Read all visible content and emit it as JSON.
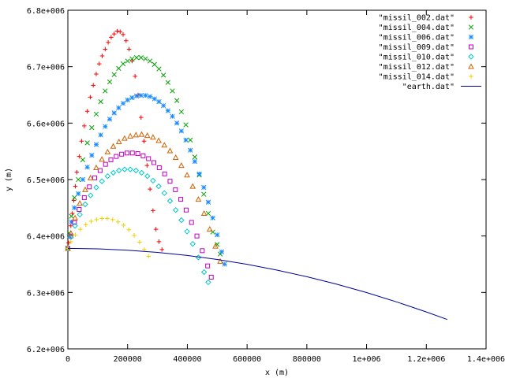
{
  "chart_data": {
    "type": "scatter",
    "xlabel": "x (m)",
    "ylabel": "y (m)",
    "xlim": [
      0,
      1400000
    ],
    "ylim": [
      6200000,
      6800000
    ],
    "x_ticks": [
      {
        "value": 0,
        "label": "0"
      },
      {
        "value": 200000,
        "label": "200000"
      },
      {
        "value": 400000,
        "label": "400000"
      },
      {
        "value": 600000,
        "label": "600000"
      },
      {
        "value": 800000,
        "label": "800000"
      },
      {
        "value": 1000000,
        "label": "1e+006"
      },
      {
        "value": 1200000,
        "label": "1.2e+006"
      },
      {
        "value": 1400000,
        "label": "1.4e+006"
      }
    ],
    "y_ticks": [
      {
        "value": 6200000,
        "label": "6.2e+006"
      },
      {
        "value": 6300000,
        "label": "6.3e+006"
      },
      {
        "value": 6400000,
        "label": "6.4e+006"
      },
      {
        "value": 6500000,
        "label": "6.5e+006"
      },
      {
        "value": 6600000,
        "label": "6.6e+006"
      },
      {
        "value": 6700000,
        "label": "6.7e+006"
      },
      {
        "value": 6800000,
        "label": "6.8e+006"
      }
    ],
    "grid": false,
    "legend_position": "top-right",
    "series": [
      {
        "name": "\"missil_002.dat\"",
        "marker": "plus",
        "color": "#ff0000",
        "points": [
          [
            0,
            6378000
          ],
          [
            2000,
            6388000
          ],
          [
            5000,
            6400000
          ],
          [
            10000,
            6418000
          ],
          [
            15000,
            6440000
          ],
          [
            20000,
            6463000
          ],
          [
            25000,
            6488000
          ],
          [
            30000,
            6513000
          ],
          [
            38000,
            6541000
          ],
          [
            46000,
            6568000
          ],
          [
            55000,
            6595000
          ],
          [
            65000,
            6621000
          ],
          [
            75000,
            6646000
          ],
          [
            85000,
            6667000
          ],
          [
            95000,
            6687000
          ],
          [
            105000,
            6705000
          ],
          [
            115000,
            6719000
          ],
          [
            125000,
            6731000
          ],
          [
            135000,
            6743000
          ],
          [
            145000,
            6752000
          ],
          [
            155000,
            6758000
          ],
          [
            165000,
            6763000
          ],
          [
            175000,
            6762000
          ],
          [
            185000,
            6757000
          ],
          [
            195000,
            6746000
          ],
          [
            205000,
            6731000
          ],
          [
            215000,
            6710000
          ],
          [
            225000,
            6683000
          ],
          [
            235000,
            6650000
          ],
          [
            245000,
            6610000
          ],
          [
            255000,
            6568000
          ],
          [
            265000,
            6525000
          ],
          [
            275000,
            6483000
          ],
          [
            285000,
            6445000
          ],
          [
            295000,
            6412000
          ],
          [
            305000,
            6390000
          ],
          [
            315000,
            6376000
          ]
        ]
      },
      {
        "name": "\"missil_004.dat\"",
        "marker": "cross",
        "color": "#00a000",
        "points": [
          [
            0,
            6378000
          ],
          [
            5000,
            6405000
          ],
          [
            12000,
            6435000
          ],
          [
            22000,
            6468000
          ],
          [
            35000,
            6500000
          ],
          [
            50000,
            6535000
          ],
          [
            65000,
            6565000
          ],
          [
            80000,
            6592000
          ],
          [
            95000,
            6616000
          ],
          [
            110000,
            6638000
          ],
          [
            125000,
            6657000
          ],
          [
            140000,
            6673000
          ],
          [
            155000,
            6686000
          ],
          [
            170000,
            6697000
          ],
          [
            185000,
            6705000
          ],
          [
            200000,
            6710000
          ],
          [
            215000,
            6714000
          ],
          [
            230000,
            6716000
          ],
          [
            245000,
            6716000
          ],
          [
            260000,
            6714000
          ],
          [
            275000,
            6710000
          ],
          [
            290000,
            6704000
          ],
          [
            305000,
            6696000
          ],
          [
            320000,
            6685000
          ],
          [
            335000,
            6672000
          ],
          [
            350000,
            6657000
          ],
          [
            365000,
            6640000
          ],
          [
            380000,
            6620000
          ],
          [
            395000,
            6597000
          ],
          [
            410000,
            6570000
          ],
          [
            425000,
            6540000
          ],
          [
            440000,
            6508000
          ],
          [
            455000,
            6474000
          ],
          [
            470000,
            6440000
          ],
          [
            485000,
            6407000
          ],
          [
            500000,
            6385000
          ],
          [
            510000,
            6368000
          ]
        ]
      },
      {
        "name": "\"missil_006.dat\"",
        "marker": "star",
        "color": "#1a8cff",
        "points": [
          [
            0,
            6378000
          ],
          [
            5000,
            6400000
          ],
          [
            12000,
            6425000
          ],
          [
            22000,
            6450000
          ],
          [
            35000,
            6475000
          ],
          [
            50000,
            6500000
          ],
          [
            65000,
            6522000
          ],
          [
            80000,
            6543000
          ],
          [
            95000,
            6562000
          ],
          [
            110000,
            6579000
          ],
          [
            125000,
            6594000
          ],
          [
            140000,
            6607000
          ],
          [
            155000,
            6618000
          ],
          [
            170000,
            6627000
          ],
          [
            185000,
            6635000
          ],
          [
            200000,
            6641000
          ],
          [
            215000,
            6645000
          ],
          [
            230000,
            6648000
          ],
          [
            245000,
            6649000
          ],
          [
            260000,
            6649000
          ],
          [
            275000,
            6647000
          ],
          [
            290000,
            6643000
          ],
          [
            305000,
            6638000
          ],
          [
            320000,
            6631000
          ],
          [
            335000,
            6622000
          ],
          [
            350000,
            6612000
          ],
          [
            365000,
            6600000
          ],
          [
            380000,
            6586000
          ],
          [
            395000,
            6570000
          ],
          [
            410000,
            6552000
          ],
          [
            425000,
            6532000
          ],
          [
            440000,
            6510000
          ],
          [
            455000,
            6486000
          ],
          [
            470000,
            6460000
          ],
          [
            485000,
            6432000
          ],
          [
            500000,
            6402000
          ],
          [
            515000,
            6372000
          ],
          [
            525000,
            6350000
          ]
        ]
      },
      {
        "name": "\"missil_009.dat\"",
        "marker": "square",
        "color": "#c000c0",
        "points": [
          [
            0,
            6378000
          ],
          [
            10000,
            6400000
          ],
          [
            22000,
            6424000
          ],
          [
            38000,
            6447000
          ],
          [
            55000,
            6468000
          ],
          [
            72000,
            6487000
          ],
          [
            90000,
            6503000
          ],
          [
            108000,
            6516000
          ],
          [
            126000,
            6527000
          ],
          [
            144000,
            6535000
          ],
          [
            162000,
            6541000
          ],
          [
            180000,
            6545000
          ],
          [
            198000,
            6547000
          ],
          [
            216000,
            6547000
          ],
          [
            234000,
            6546000
          ],
          [
            252000,
            6542000
          ],
          [
            270000,
            6537000
          ],
          [
            288000,
            6530000
          ],
          [
            306000,
            6521000
          ],
          [
            324000,
            6510000
          ],
          [
            342000,
            6497000
          ],
          [
            360000,
            6482000
          ],
          [
            378000,
            6465000
          ],
          [
            396000,
            6446000
          ],
          [
            414000,
            6424000
          ],
          [
            432000,
            6400000
          ],
          [
            450000,
            6374000
          ],
          [
            468000,
            6347000
          ],
          [
            480000,
            6327000
          ]
        ]
      },
      {
        "name": "\"missil_010.dat\"",
        "marker": "diamond",
        "color": "#00c8c8",
        "points": [
          [
            0,
            6378000
          ],
          [
            10000,
            6398000
          ],
          [
            24000,
            6418000
          ],
          [
            40000,
            6438000
          ],
          [
            58000,
            6456000
          ],
          [
            76000,
            6472000
          ],
          [
            95000,
            6486000
          ],
          [
            114000,
            6497000
          ],
          [
            133000,
            6506000
          ],
          [
            152000,
            6512000
          ],
          [
            171000,
            6516000
          ],
          [
            190000,
            6518000
          ],
          [
            209000,
            6518000
          ],
          [
            228000,
            6516000
          ],
          [
            247000,
            6512000
          ],
          [
            266000,
            6506000
          ],
          [
            285000,
            6498000
          ],
          [
            304000,
            6488000
          ],
          [
            323000,
            6476000
          ],
          [
            342000,
            6462000
          ],
          [
            361000,
            6446000
          ],
          [
            380000,
            6428000
          ],
          [
            399000,
            6408000
          ],
          [
            418000,
            6386000
          ],
          [
            437000,
            6362000
          ],
          [
            456000,
            6336000
          ],
          [
            470000,
            6318000
          ]
        ]
      },
      {
        "name": "\"missil_012.dat\"",
        "marker": "triangle",
        "color": "#d06000",
        "points": [
          [
            0,
            6378000
          ],
          [
            10000,
            6405000
          ],
          [
            24000,
            6432000
          ],
          [
            40000,
            6458000
          ],
          [
            58000,
            6482000
          ],
          [
            76000,
            6503000
          ],
          [
            95000,
            6521000
          ],
          [
            114000,
            6536000
          ],
          [
            133000,
            6549000
          ],
          [
            152000,
            6559000
          ],
          [
            171000,
            6567000
          ],
          [
            190000,
            6573000
          ],
          [
            209000,
            6577000
          ],
          [
            228000,
            6579000
          ],
          [
            247000,
            6580000
          ],
          [
            266000,
            6578000
          ],
          [
            285000,
            6575000
          ],
          [
            304000,
            6569000
          ],
          [
            323000,
            6561000
          ],
          [
            342000,
            6551000
          ],
          [
            361000,
            6539000
          ],
          [
            380000,
            6525000
          ],
          [
            399000,
            6508000
          ],
          [
            418000,
            6488000
          ],
          [
            437000,
            6465000
          ],
          [
            456000,
            6440000
          ],
          [
            475000,
            6412000
          ],
          [
            494000,
            6382000
          ],
          [
            510000,
            6355000
          ]
        ]
      },
      {
        "name": "\"missil_014.dat\"",
        "marker": "plus",
        "color": "#f0d000",
        "points": [
          [
            0,
            6378000
          ],
          [
            10000,
            6390000
          ],
          [
            25000,
            6402000
          ],
          [
            42000,
            6412000
          ],
          [
            60000,
            6420000
          ],
          [
            78000,
            6426000
          ],
          [
            96000,
            6429000
          ],
          [
            114000,
            6431000
          ],
          [
            132000,
            6431000
          ],
          [
            150000,
            6429000
          ],
          [
            168000,
            6425000
          ],
          [
            186000,
            6419000
          ],
          [
            204000,
            6411000
          ],
          [
            222000,
            6401000
          ],
          [
            240000,
            6389000
          ],
          [
            256000,
            6376000
          ],
          [
            270000,
            6364000
          ]
        ]
      },
      {
        "name": "\"earth.dat\"",
        "marker": "line",
        "color": "#0000a0",
        "points": [
          [
            0,
            6378000
          ],
          [
            100000,
            6377200
          ],
          [
            200000,
            6374800
          ],
          [
            300000,
            6370900
          ],
          [
            400000,
            6365500
          ],
          [
            500000,
            6358400
          ],
          [
            600000,
            6349800
          ],
          [
            700000,
            6339600
          ],
          [
            800000,
            6327800
          ],
          [
            900000,
            6314500
          ],
          [
            1000000,
            6299700
          ],
          [
            1100000,
            6283300
          ],
          [
            1200000,
            6265400
          ],
          [
            1270000,
            6252000
          ]
        ]
      }
    ]
  }
}
